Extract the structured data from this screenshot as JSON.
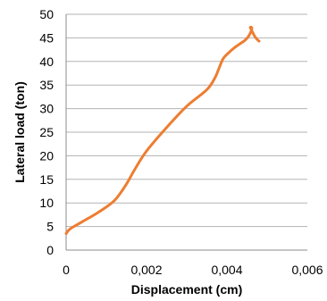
{
  "chart_data": {
    "type": "line",
    "title": "",
    "xlabel": "Displacement (cm)",
    "ylabel": "Lateral load (ton)",
    "xlim": [
      0,
      0.006
    ],
    "ylim": [
      0,
      50
    ],
    "xticks": [
      0,
      0.002,
      0.004,
      0.006
    ],
    "xtick_labels": [
      "0",
      "0,002",
      "0,004",
      "0,006"
    ],
    "yticks": [
      0,
      5,
      10,
      15,
      20,
      25,
      30,
      35,
      40,
      45,
      50
    ],
    "ytick_labels": [
      "0",
      "5",
      "10",
      "15",
      "20",
      "25",
      "30",
      "35",
      "40",
      "45",
      "50"
    ],
    "grid": "horizontal",
    "series": [
      {
        "color": "#ed7d31",
        "x": [
          0,
          0.0001,
          0.0004,
          0.0008,
          0.0012,
          0.0015,
          0.0017,
          0.002,
          0.0025,
          0.003,
          0.0035,
          0.0037,
          0.0038,
          0.0039,
          0.004,
          0.0042,
          0.00445,
          0.00455,
          0.00462,
          0.00458,
          0.00465,
          0.0047,
          0.00475,
          0.0048
        ],
        "y": [
          3.5,
          4.5,
          6.0,
          8.0,
          10.5,
          14.0,
          17.0,
          21.0,
          26.0,
          30.5,
          34.0,
          36.5,
          38.5,
          40.5,
          41.5,
          43.0,
          44.5,
          45.5,
          47.0,
          47.2,
          46.0,
          45.2,
          44.7,
          44.3
        ]
      }
    ]
  }
}
